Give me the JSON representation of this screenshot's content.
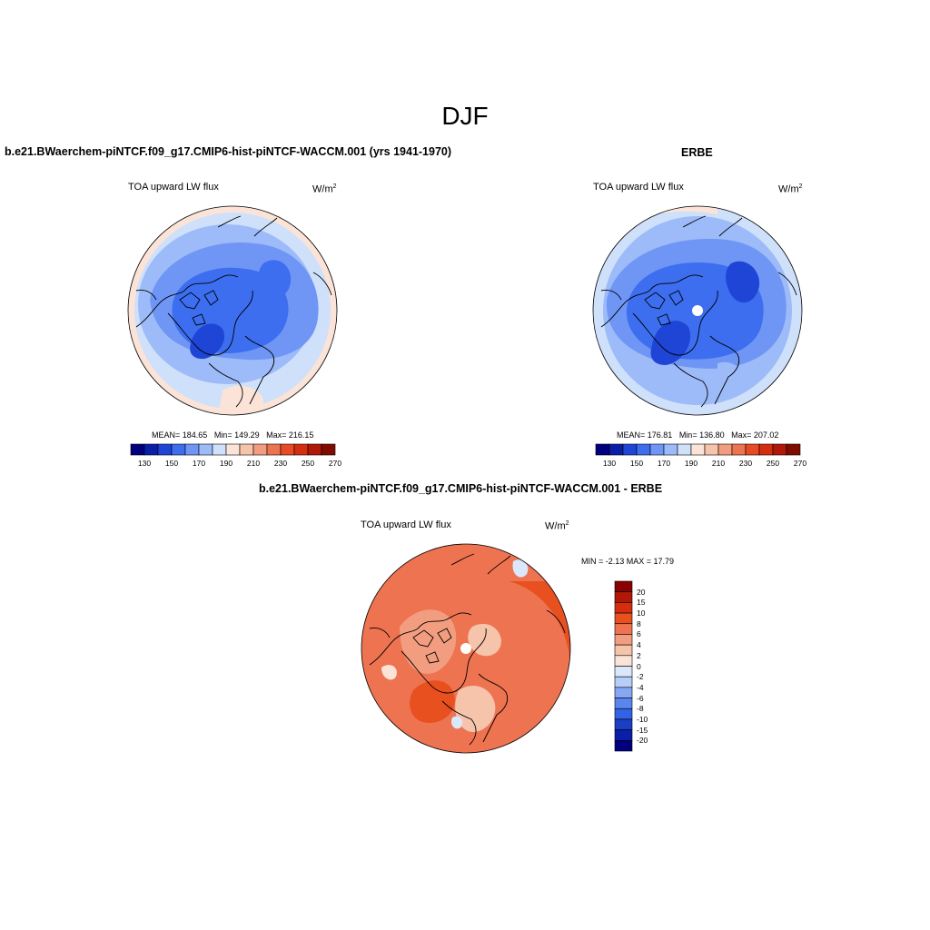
{
  "page": {
    "title": "DJF"
  },
  "panels": [
    {
      "id": "model",
      "case_title": "b.e21.BWaerchem-piNTCF.f09_g17.CMIP6-hist-piNTCF-WACCM.001 (yrs 1941-1970)",
      "variable": "TOA upward LW flux",
      "units_base": "W/m",
      "units_exp": "2",
      "stats": {
        "mean": "MEAN= 184.65",
        "min": "Min= 149.29",
        "max": "Max= 216.15"
      },
      "colorbar_ticks": [
        "130",
        "150",
        "170",
        "190",
        "210",
        "230",
        "250",
        "270"
      ]
    },
    {
      "id": "obs",
      "case_title": "ERBE",
      "variable": "TOA upward LW flux",
      "units_base": "W/m",
      "units_exp": "2",
      "stats": {
        "mean": "MEAN= 176.81",
        "min": "Min= 136.80",
        "max": "Max= 207.02"
      },
      "colorbar_ticks": [
        "130",
        "150",
        "170",
        "190",
        "210",
        "230",
        "250",
        "270"
      ]
    },
    {
      "id": "diff",
      "case_title": "b.e21.BWaerchem-piNTCF.f09_g17.CMIP6-hist-piNTCF-WACCM.001 - ERBE",
      "variable": "TOA upward LW flux",
      "units_base": "W/m",
      "units_exp": "2",
      "minmax": "MIN =  -2.13 MAX =  17.79",
      "colorbar_ticks": [
        "20",
        "15",
        "10",
        "8",
        "6",
        "4",
        "2",
        "0",
        "-2",
        "-4",
        "-6",
        "-8",
        "-10",
        "-15",
        "-20"
      ]
    }
  ],
  "colors": {
    "abs_palette": [
      "#00007f",
      "#0a1ea8",
      "#1f45d6",
      "#3d6ef0",
      "#6f96f5",
      "#9dbbf8",
      "#cfe0fb",
      "#fbe4d7",
      "#f6c3ab",
      "#f29d7f",
      "#ee7350",
      "#e84a25",
      "#d52e0e",
      "#b01807",
      "#820b00"
    ],
    "diff_palette": [
      "#8b0000",
      "#b01807",
      "#d52e0e",
      "#e8501f",
      "#ee7350",
      "#f29d7f",
      "#f6c3ab",
      "#fbe4d7",
      "#dbe8fb",
      "#b7cff8",
      "#86a8f3",
      "#5a85ef",
      "#3262e6",
      "#1a3fc4",
      "#0a1ea8",
      "#00007f"
    ]
  }
}
